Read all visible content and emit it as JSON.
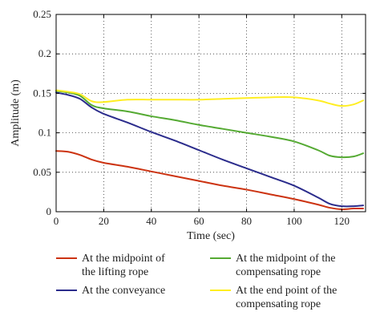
{
  "chart_data": {
    "type": "line",
    "title": "",
    "xlabel": "Time (sec)",
    "ylabel": "Amplitude (m)",
    "xlim": [
      0,
      130
    ],
    "ylim": [
      0,
      0.25
    ],
    "x_ticks": [
      0,
      20,
      40,
      60,
      80,
      100,
      120
    ],
    "y_ticks": [
      0,
      0.05,
      0.1,
      0.15,
      0.2,
      0.25
    ],
    "x_tick_labels": [
      "0",
      "20",
      "40",
      "60",
      "80",
      "100",
      "120"
    ],
    "y_tick_labels": [
      "0",
      "0.05",
      "0.1",
      "0.15",
      "0.2",
      "0.25"
    ],
    "grid": "dotted",
    "legend_position": "bottom",
    "series": [
      {
        "name": "At the midpoint of the lifting rope",
        "legend_lines": [
          "At the midpoint of",
          "the lifting rope"
        ],
        "color": "#cc3311",
        "x": [
          0,
          5,
          10,
          15,
          20,
          30,
          40,
          50,
          60,
          70,
          80,
          90,
          100,
          110,
          115,
          120,
          125,
          129
        ],
        "y": [
          0.077,
          0.076,
          0.072,
          0.066,
          0.062,
          0.057,
          0.051,
          0.045,
          0.039,
          0.033,
          0.028,
          0.022,
          0.016,
          0.009,
          0.005,
          0.003,
          0.004,
          0.004
        ]
      },
      {
        "name": "At the conveyance",
        "legend_lines": [
          "At the conveyance"
        ],
        "color": "#2b2c8c",
        "x": [
          0,
          5,
          10,
          15,
          20,
          30,
          40,
          50,
          60,
          70,
          80,
          90,
          100,
          110,
          115,
          120,
          125,
          129
        ],
        "y": [
          0.151,
          0.148,
          0.143,
          0.132,
          0.124,
          0.113,
          0.101,
          0.09,
          0.078,
          0.066,
          0.055,
          0.044,
          0.033,
          0.018,
          0.01,
          0.007,
          0.007,
          0.008
        ]
      },
      {
        "name": "At the midpoint of the compensating rope",
        "legend_lines": [
          "At the midpoint of the",
          "compensating rope"
        ],
        "color": "#55aa33",
        "x": [
          0,
          5,
          10,
          15,
          20,
          30,
          40,
          50,
          60,
          70,
          80,
          90,
          100,
          110,
          115,
          120,
          125,
          129
        ],
        "y": [
          0.153,
          0.151,
          0.147,
          0.135,
          0.131,
          0.127,
          0.121,
          0.116,
          0.11,
          0.105,
          0.1,
          0.095,
          0.089,
          0.078,
          0.071,
          0.069,
          0.07,
          0.074
        ]
      },
      {
        "name": "At the end point of the compensating rope",
        "legend_lines": [
          "At the end point of the",
          "compensating rope"
        ],
        "color": "#ffee22",
        "x": [
          0,
          5,
          10,
          15,
          20,
          30,
          40,
          50,
          60,
          70,
          80,
          90,
          100,
          110,
          115,
          120,
          125,
          129
        ],
        "y": [
          0.154,
          0.152,
          0.149,
          0.14,
          0.139,
          0.142,
          0.142,
          0.142,
          0.142,
          0.143,
          0.144,
          0.145,
          0.145,
          0.141,
          0.137,
          0.134,
          0.136,
          0.141
        ]
      }
    ]
  }
}
